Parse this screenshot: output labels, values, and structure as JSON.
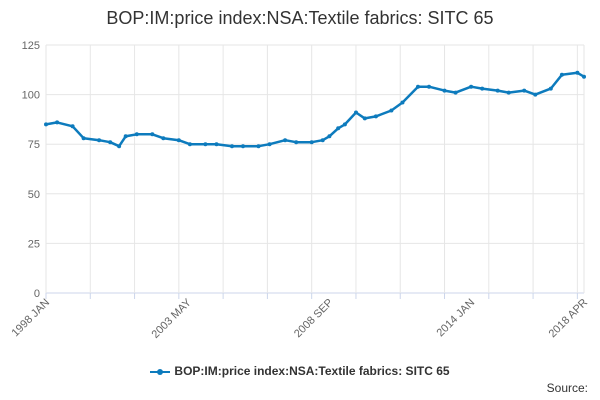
{
  "chart_data": {
    "type": "line",
    "title": "BOP:IM:price index:NSA:Textile fabrics: SITC 65",
    "xlabel": "",
    "ylabel": "",
    "ylim": [
      0,
      125
    ],
    "yticks": [
      0,
      25,
      50,
      75,
      100,
      125
    ],
    "xlim": [
      "1998 JAN",
      "2018 APR"
    ],
    "xtick_labels": [
      "1998 JAN",
      "2003 MAY",
      "2008 SEP",
      "2014 JAN",
      "2018 APR"
    ],
    "grid": true,
    "legend": "bottom",
    "color": "#0d7bbd",
    "series": [
      {
        "name": "BOP:IM:price index:NSA:Textile fabrics: SITC 65",
        "x": [
          "1998-01",
          "1998-06",
          "1999-01",
          "1999-06",
          "2000-01",
          "2000-06",
          "2000-10",
          "2001-01",
          "2001-06",
          "2002-01",
          "2002-06",
          "2003-01",
          "2003-06",
          "2004-01",
          "2004-06",
          "2005-01",
          "2005-06",
          "2006-01",
          "2006-06",
          "2007-01",
          "2007-06",
          "2008-01",
          "2008-06",
          "2008-09",
          "2009-01",
          "2009-04",
          "2009-09",
          "2010-01",
          "2010-06",
          "2011-01",
          "2011-06",
          "2012-01",
          "2012-06",
          "2013-01",
          "2013-06",
          "2014-01",
          "2014-06",
          "2015-01",
          "2015-06",
          "2016-01",
          "2016-06",
          "2017-01",
          "2017-06",
          "2018-01",
          "2018-04"
        ],
        "y": [
          85,
          86,
          84,
          78,
          77,
          76,
          74,
          79,
          80,
          80,
          78,
          77,
          75,
          75,
          75,
          74,
          74,
          74,
          75,
          77,
          76,
          76,
          77,
          79,
          83,
          85,
          91,
          88,
          89,
          92,
          96,
          104,
          104,
          102,
          101,
          104,
          103,
          102,
          101,
          102,
          100,
          103,
          110,
          111,
          109
        ]
      }
    ]
  },
  "source_label": "Source:"
}
